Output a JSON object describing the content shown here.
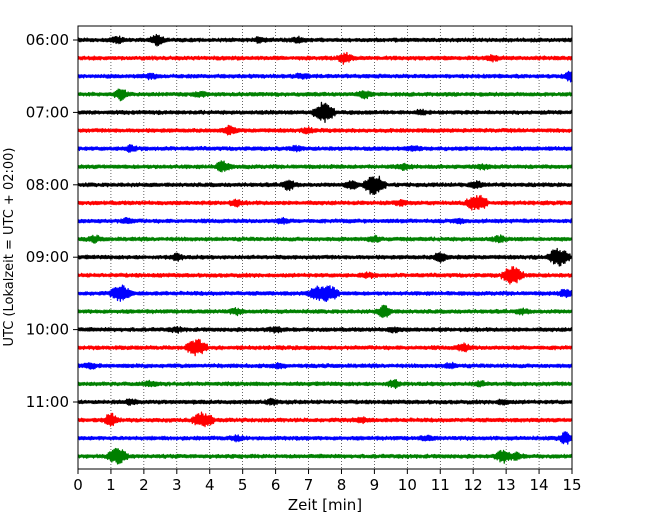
{
  "chart_data": {
    "type": "line",
    "chart_kind": "helicorder",
    "xlabel": "Zeit  [min]",
    "ylabel": "UTC (Lokalzeit = UTC + 02:00)",
    "xlim": [
      0,
      15
    ],
    "x_ticks": [
      0,
      1,
      2,
      3,
      4,
      5,
      6,
      7,
      8,
      9,
      10,
      11,
      12,
      13,
      14,
      15
    ],
    "x_grid": "dotted vertical at each minute",
    "y_tick_labels": [
      "06:00",
      "07:00",
      "08:00",
      "09:00",
      "10:00",
      "11:00"
    ],
    "trace_interval_minutes": 15,
    "trace_color_cycle": [
      "#000000",
      "#ff0000",
      "#0000ff",
      "#008000"
    ],
    "traces": [
      {
        "start": "06:00",
        "color": "#000000",
        "events": [
          [
            1.2,
            0.25
          ],
          [
            2.4,
            0.45
          ],
          [
            5.5,
            0.2
          ],
          [
            6.7,
            0.2
          ]
        ]
      },
      {
        "start": "06:15",
        "color": "#ff0000",
        "events": [
          [
            8.1,
            0.5
          ],
          [
            12.6,
            0.2
          ]
        ]
      },
      {
        "start": "06:30",
        "color": "#0000ff",
        "events": [
          [
            2.2,
            0.2
          ],
          [
            6.8,
            0.2
          ],
          [
            15.0,
            0.6
          ]
        ]
      },
      {
        "start": "06:45",
        "color": "#008000",
        "events": [
          [
            1.3,
            0.55
          ],
          [
            3.7,
            0.2
          ],
          [
            8.7,
            0.35
          ]
        ]
      },
      {
        "start": "07:00",
        "color": "#000000",
        "events": [
          [
            7.45,
            1.0
          ],
          [
            10.4,
            0.2
          ]
        ]
      },
      {
        "start": "07:15",
        "color": "#ff0000",
        "events": [
          [
            4.6,
            0.35
          ],
          [
            7.0,
            0.2
          ]
        ]
      },
      {
        "start": "07:30",
        "color": "#0000ff",
        "events": [
          [
            1.6,
            0.25
          ],
          [
            6.6,
            0.2
          ],
          [
            10.2,
            0.2
          ]
        ]
      },
      {
        "start": "07:45",
        "color": "#008000",
        "events": [
          [
            4.4,
            0.55
          ],
          [
            9.9,
            0.25
          ],
          [
            12.3,
            0.2
          ]
        ]
      },
      {
        "start": "08:00",
        "color": "#000000",
        "events": [
          [
            6.4,
            0.45
          ],
          [
            8.3,
            0.35
          ],
          [
            9.0,
            1.0
          ],
          [
            12.1,
            0.3
          ]
        ]
      },
      {
        "start": "08:15",
        "color": "#ff0000",
        "events": [
          [
            4.8,
            0.25
          ],
          [
            9.8,
            0.2
          ],
          [
            12.1,
            0.8
          ]
        ]
      },
      {
        "start": "08:30",
        "color": "#0000ff",
        "events": [
          [
            1.5,
            0.2
          ],
          [
            6.2,
            0.2
          ],
          [
            11.6,
            0.2
          ]
        ]
      },
      {
        "start": "08:45",
        "color": "#008000",
        "events": [
          [
            0.5,
            0.25
          ],
          [
            9.0,
            0.25
          ],
          [
            12.8,
            0.25
          ]
        ]
      },
      {
        "start": "09:00",
        "color": "#000000",
        "events": [
          [
            3.0,
            0.3
          ],
          [
            11.0,
            0.45
          ],
          [
            14.6,
            0.85
          ]
        ]
      },
      {
        "start": "09:15",
        "color": "#ff0000",
        "events": [
          [
            8.8,
            0.2
          ],
          [
            13.2,
            0.85
          ]
        ]
      },
      {
        "start": "09:30",
        "color": "#0000ff",
        "events": [
          [
            1.3,
            0.75
          ],
          [
            7.2,
            0.55
          ],
          [
            7.6,
            0.75
          ],
          [
            14.8,
            0.3
          ]
        ]
      },
      {
        "start": "09:45",
        "color": "#008000",
        "events": [
          [
            4.8,
            0.25
          ],
          [
            9.3,
            0.6
          ],
          [
            13.5,
            0.2
          ]
        ]
      },
      {
        "start": "10:00",
        "color": "#000000",
        "events": [
          [
            3.0,
            0.2
          ],
          [
            6.0,
            0.2
          ],
          [
            9.6,
            0.2
          ]
        ]
      },
      {
        "start": "10:15",
        "color": "#ff0000",
        "events": [
          [
            3.6,
            0.75
          ],
          [
            11.7,
            0.35
          ]
        ]
      },
      {
        "start": "10:30",
        "color": "#0000ff",
        "events": [
          [
            0.4,
            0.2
          ],
          [
            6.1,
            0.2
          ],
          [
            11.3,
            0.2
          ]
        ]
      },
      {
        "start": "10:45",
        "color": "#008000",
        "events": [
          [
            2.2,
            0.2
          ],
          [
            9.6,
            0.35
          ],
          [
            12.2,
            0.2
          ]
        ]
      },
      {
        "start": "11:00",
        "color": "#000000",
        "events": [
          [
            1.6,
            0.2
          ],
          [
            5.9,
            0.2
          ],
          [
            12.9,
            0.2
          ]
        ]
      },
      {
        "start": "11:15",
        "color": "#ff0000",
        "events": [
          [
            1.0,
            0.6
          ],
          [
            3.8,
            0.7
          ],
          [
            8.6,
            0.2
          ]
        ]
      },
      {
        "start": "11:30",
        "color": "#0000ff",
        "events": [
          [
            4.8,
            0.2
          ],
          [
            10.6,
            0.2
          ],
          [
            14.8,
            0.55
          ]
        ]
      },
      {
        "start": "11:45",
        "color": "#008000",
        "events": [
          [
            1.2,
            0.75
          ],
          [
            12.9,
            0.6
          ],
          [
            13.3,
            0.3
          ]
        ]
      }
    ]
  }
}
